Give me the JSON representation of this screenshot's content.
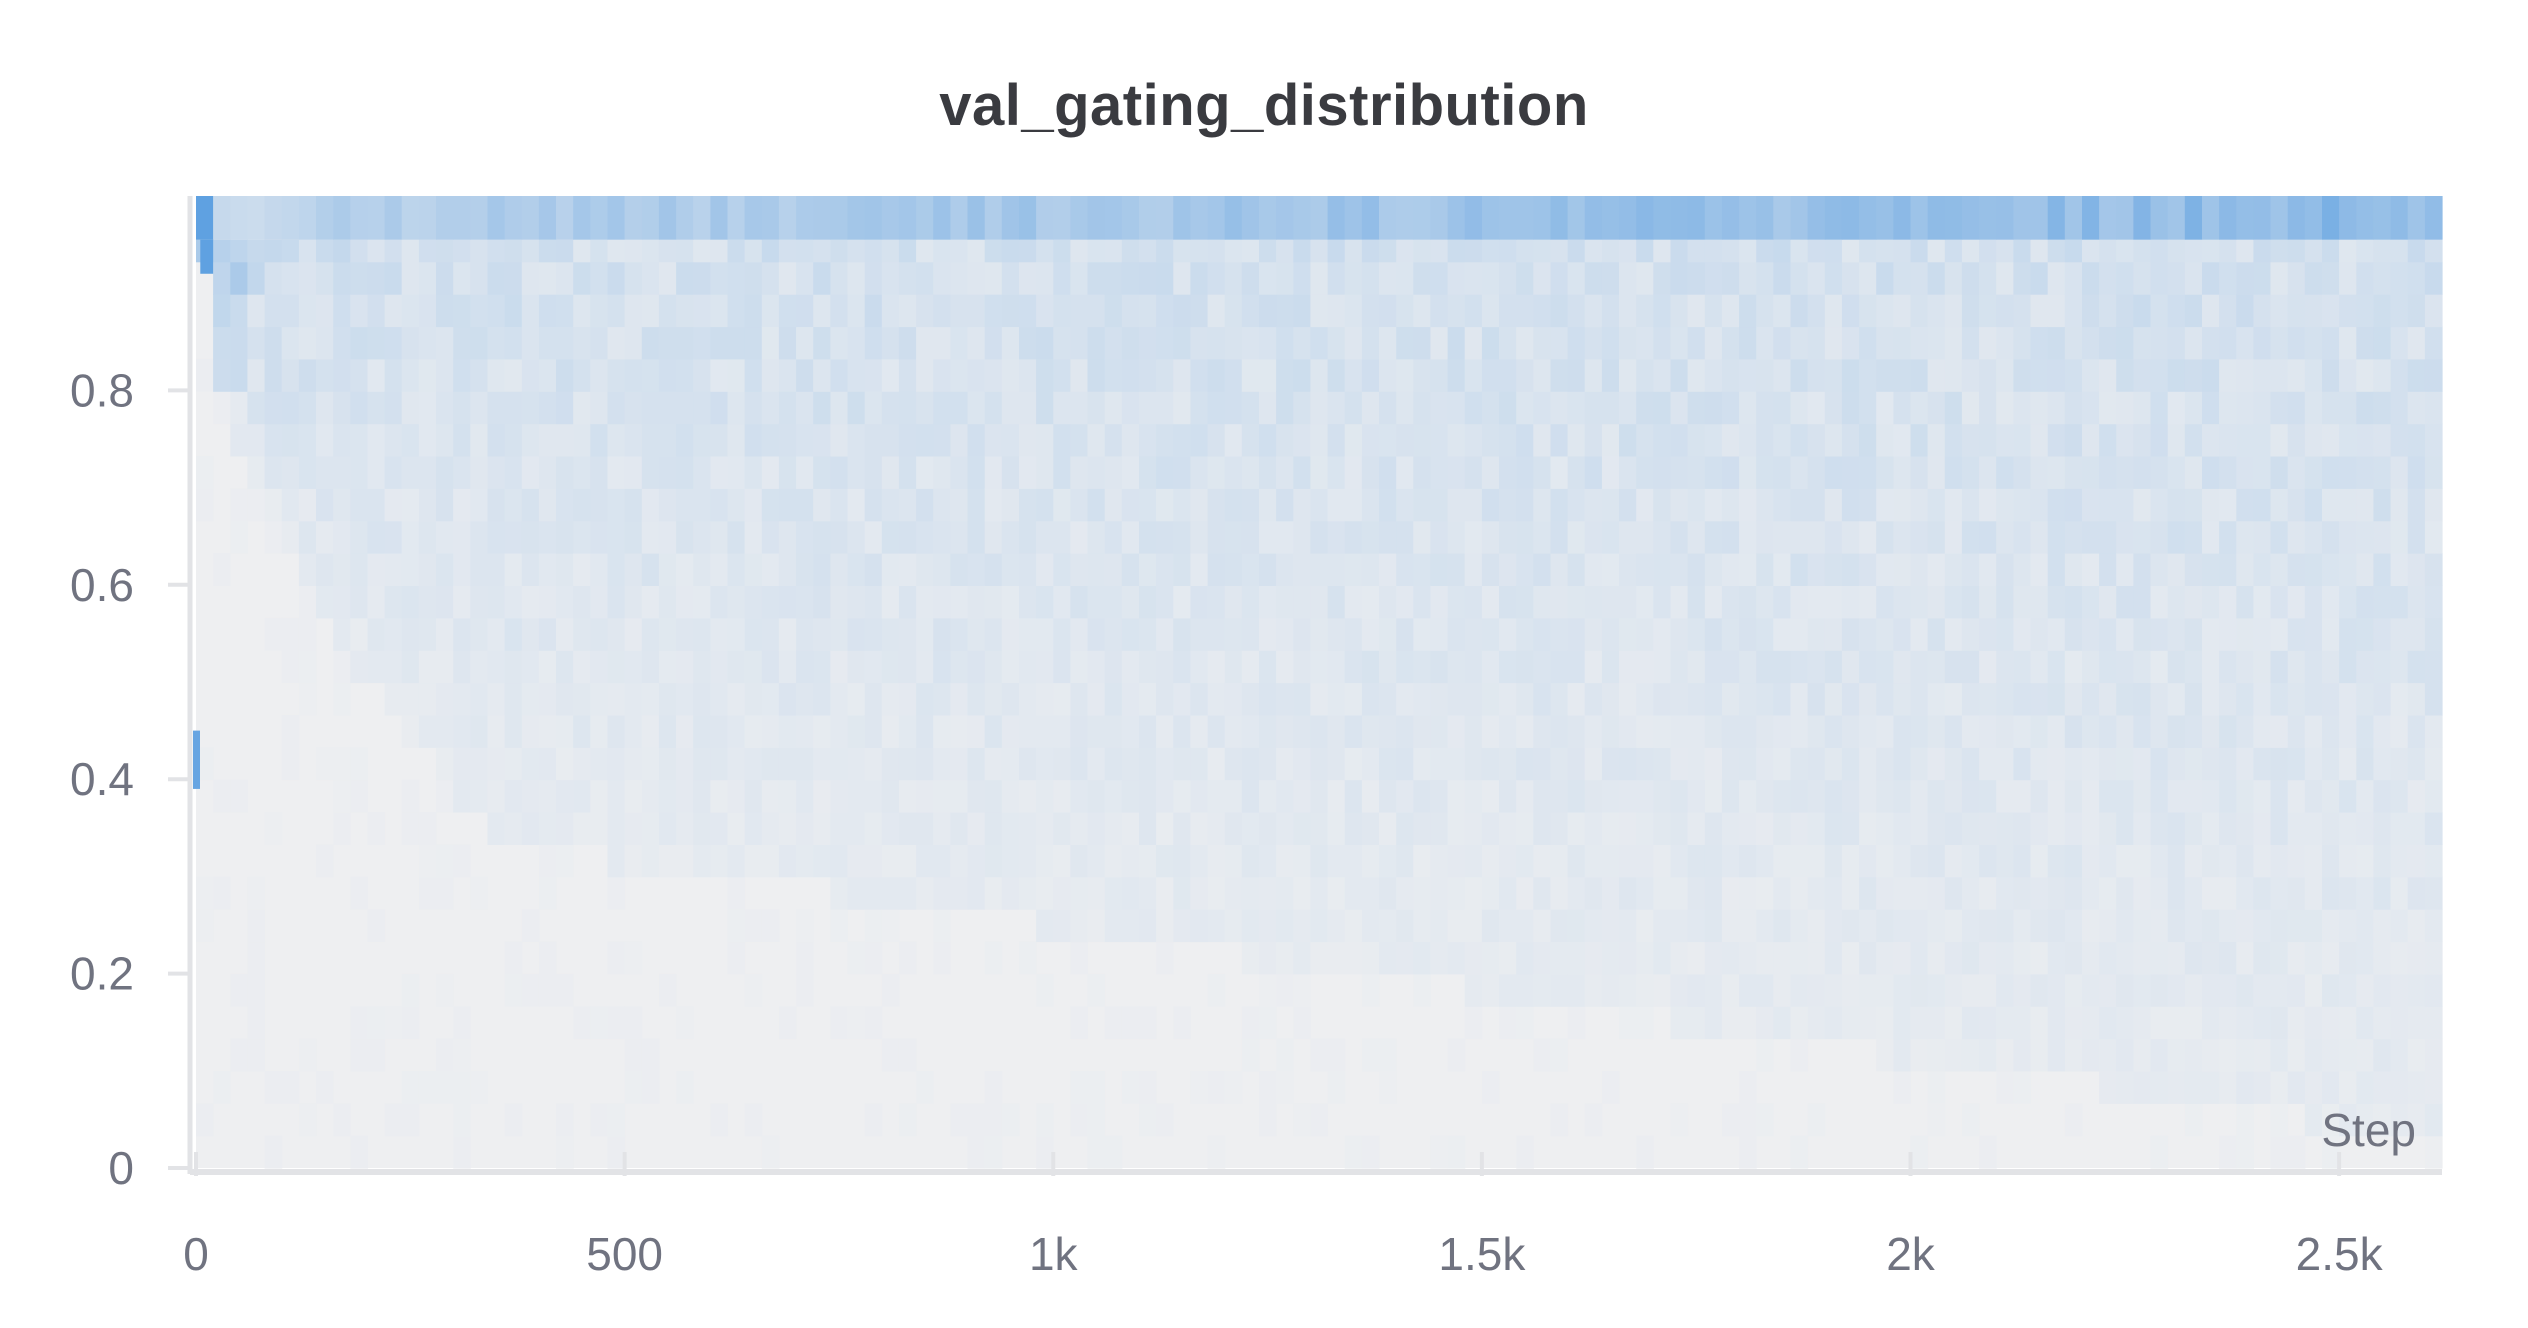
{
  "chart_data": {
    "type": "heatmap",
    "title": "val_gating_distribution",
    "xlabel": "Step",
    "ylabel": "",
    "xlim": [
      0,
      2620
    ],
    "ylim": [
      0,
      1
    ],
    "x_ticks": [
      {
        "value": 0,
        "label": "0"
      },
      {
        "value": 500,
        "label": "500"
      },
      {
        "value": 1000,
        "label": "1k"
      },
      {
        "value": 1500,
        "label": "1.5k"
      },
      {
        "value": 2000,
        "label": "2k"
      },
      {
        "value": 2500,
        "label": "2.5k"
      }
    ],
    "y_ticks": [
      {
        "value": 0,
        "label": "0"
      },
      {
        "value": 0.2,
        "label": "0.2"
      },
      {
        "value": 0.4,
        "label": "0.4"
      },
      {
        "value": 0.6,
        "label": "0.6"
      },
      {
        "value": 0.8,
        "label": "0.8"
      }
    ],
    "x_step": 20,
    "y_bin_size": 0.0333,
    "colors": {
      "low": "#eeeff1",
      "high": "#4f98df",
      "background": "#ffffff",
      "axis": "#e2e3e6",
      "tick_text": "#707380",
      "title_text": "#3a3b40"
    },
    "density_profile": {
      "top_bin_lower": 0.955,
      "top_bin_start": 0.35,
      "top_bin_end": 0.62,
      "spread_initial": 0.95,
      "spread_final": 0.38,
      "early_spike": {
        "x": 0,
        "y": [
          0.39,
          0.45
        ],
        "intensity": 0.85
      }
    },
    "grid": false,
    "legend": "none"
  }
}
